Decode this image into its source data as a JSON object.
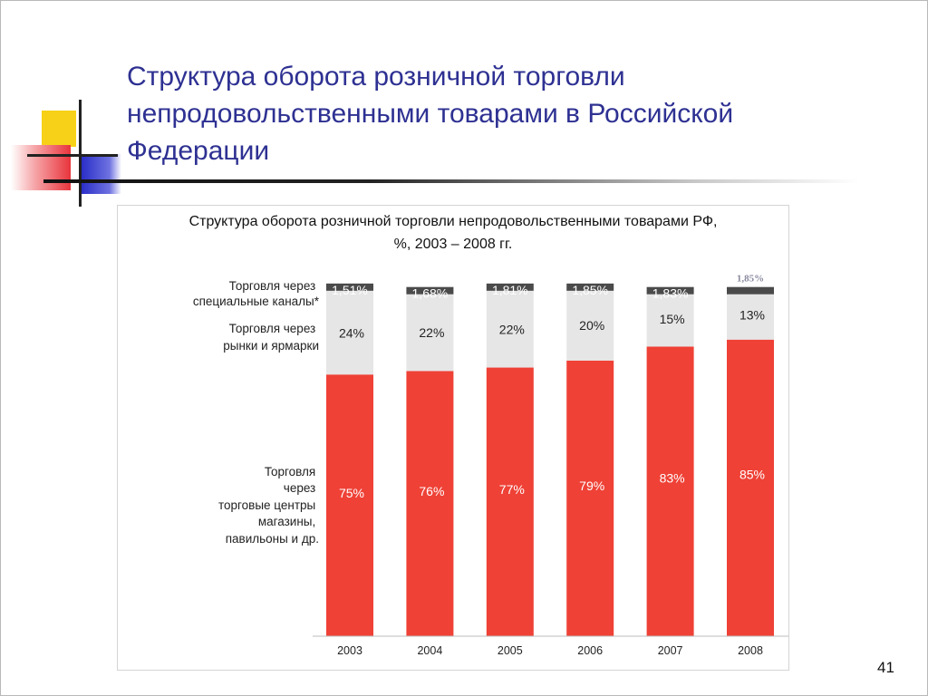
{
  "slide": {
    "title": "Структура оборота розничной торговли непродовольственными товарами в Российской Федерации",
    "number": "41"
  },
  "colors": {
    "accent_title": "#2e3192",
    "deco_yellow": "#f7d117",
    "deco_red": "#e8343c",
    "deco_blue": "#2a2ec8"
  },
  "chart_data": {
    "type": "bar",
    "stacked": true,
    "title": "Структура оборота розничной торговли непродовольственными товарами РФ, %, 2003 – 2008 гг.",
    "categories": [
      "2003",
      "2004",
      "2005",
      "2006",
      "2007",
      "2008"
    ],
    "ylim": [
      0,
      100
    ],
    "series": [
      {
        "name": "Торговля через торговые центры магазины, павильоны и др.",
        "color": "#ef4136",
        "values": [
          75,
          76,
          77,
          79,
          83,
          85
        ],
        "labels": [
          "75%",
          "76%",
          "77%",
          "79%",
          "83%",
          "85%"
        ]
      },
      {
        "name": "Торговля через рынки и ярмарки",
        "color": "#e6e6e6",
        "values": [
          24,
          22,
          22,
          20,
          15,
          13
        ],
        "labels": [
          "24%",
          "22%",
          "22%",
          "20%",
          "15%",
          "13%"
        ]
      },
      {
        "name": "Торговля через специальные каналы*",
        "color": "#4a4a4a",
        "values": [
          1.51,
          1.68,
          1.81,
          1.85,
          1.83,
          1.85
        ],
        "labels": [
          "1,51%",
          "1,68%",
          "1,81%",
          "1,85%",
          "1,83%",
          "1,85%"
        ]
      }
    ],
    "legend_placement": "left"
  }
}
